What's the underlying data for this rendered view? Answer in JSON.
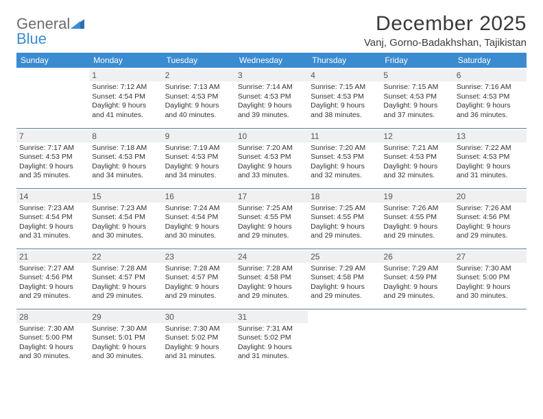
{
  "logo": {
    "general": "General",
    "blue": "Blue"
  },
  "header": {
    "month_title": "December 2025",
    "location": "Vanj, Gorno-Badakhshan, Tajikistan"
  },
  "colors": {
    "header_bg": "#3b8bd0",
    "header_text": "#ffffff",
    "daynum_bg": "#eef0f2",
    "row_border": "#5a7a99",
    "logo_gray": "#6b6b6b",
    "logo_blue": "#3b8bd0"
  },
  "day_names": [
    "Sunday",
    "Monday",
    "Tuesday",
    "Wednesday",
    "Thursday",
    "Friday",
    "Saturday"
  ],
  "weeks": [
    [
      null,
      {
        "n": "1",
        "sr": "Sunrise: 7:12 AM",
        "ss": "Sunset: 4:54 PM",
        "dl1": "Daylight: 9 hours",
        "dl2": "and 41 minutes."
      },
      {
        "n": "2",
        "sr": "Sunrise: 7:13 AM",
        "ss": "Sunset: 4:53 PM",
        "dl1": "Daylight: 9 hours",
        "dl2": "and 40 minutes."
      },
      {
        "n": "3",
        "sr": "Sunrise: 7:14 AM",
        "ss": "Sunset: 4:53 PM",
        "dl1": "Daylight: 9 hours",
        "dl2": "and 39 minutes."
      },
      {
        "n": "4",
        "sr": "Sunrise: 7:15 AM",
        "ss": "Sunset: 4:53 PM",
        "dl1": "Daylight: 9 hours",
        "dl2": "and 38 minutes."
      },
      {
        "n": "5",
        "sr": "Sunrise: 7:15 AM",
        "ss": "Sunset: 4:53 PM",
        "dl1": "Daylight: 9 hours",
        "dl2": "and 37 minutes."
      },
      {
        "n": "6",
        "sr": "Sunrise: 7:16 AM",
        "ss": "Sunset: 4:53 PM",
        "dl1": "Daylight: 9 hours",
        "dl2": "and 36 minutes."
      }
    ],
    [
      {
        "n": "7",
        "sr": "Sunrise: 7:17 AM",
        "ss": "Sunset: 4:53 PM",
        "dl1": "Daylight: 9 hours",
        "dl2": "and 35 minutes."
      },
      {
        "n": "8",
        "sr": "Sunrise: 7:18 AM",
        "ss": "Sunset: 4:53 PM",
        "dl1": "Daylight: 9 hours",
        "dl2": "and 34 minutes."
      },
      {
        "n": "9",
        "sr": "Sunrise: 7:19 AM",
        "ss": "Sunset: 4:53 PM",
        "dl1": "Daylight: 9 hours",
        "dl2": "and 34 minutes."
      },
      {
        "n": "10",
        "sr": "Sunrise: 7:20 AM",
        "ss": "Sunset: 4:53 PM",
        "dl1": "Daylight: 9 hours",
        "dl2": "and 33 minutes."
      },
      {
        "n": "11",
        "sr": "Sunrise: 7:20 AM",
        "ss": "Sunset: 4:53 PM",
        "dl1": "Daylight: 9 hours",
        "dl2": "and 32 minutes."
      },
      {
        "n": "12",
        "sr": "Sunrise: 7:21 AM",
        "ss": "Sunset: 4:53 PM",
        "dl1": "Daylight: 9 hours",
        "dl2": "and 32 minutes."
      },
      {
        "n": "13",
        "sr": "Sunrise: 7:22 AM",
        "ss": "Sunset: 4:53 PM",
        "dl1": "Daylight: 9 hours",
        "dl2": "and 31 minutes."
      }
    ],
    [
      {
        "n": "14",
        "sr": "Sunrise: 7:23 AM",
        "ss": "Sunset: 4:54 PM",
        "dl1": "Daylight: 9 hours",
        "dl2": "and 31 minutes."
      },
      {
        "n": "15",
        "sr": "Sunrise: 7:23 AM",
        "ss": "Sunset: 4:54 PM",
        "dl1": "Daylight: 9 hours",
        "dl2": "and 30 minutes."
      },
      {
        "n": "16",
        "sr": "Sunrise: 7:24 AM",
        "ss": "Sunset: 4:54 PM",
        "dl1": "Daylight: 9 hours",
        "dl2": "and 30 minutes."
      },
      {
        "n": "17",
        "sr": "Sunrise: 7:25 AM",
        "ss": "Sunset: 4:55 PM",
        "dl1": "Daylight: 9 hours",
        "dl2": "and 29 minutes."
      },
      {
        "n": "18",
        "sr": "Sunrise: 7:25 AM",
        "ss": "Sunset: 4:55 PM",
        "dl1": "Daylight: 9 hours",
        "dl2": "and 29 minutes."
      },
      {
        "n": "19",
        "sr": "Sunrise: 7:26 AM",
        "ss": "Sunset: 4:55 PM",
        "dl1": "Daylight: 9 hours",
        "dl2": "and 29 minutes."
      },
      {
        "n": "20",
        "sr": "Sunrise: 7:26 AM",
        "ss": "Sunset: 4:56 PM",
        "dl1": "Daylight: 9 hours",
        "dl2": "and 29 minutes."
      }
    ],
    [
      {
        "n": "21",
        "sr": "Sunrise: 7:27 AM",
        "ss": "Sunset: 4:56 PM",
        "dl1": "Daylight: 9 hours",
        "dl2": "and 29 minutes."
      },
      {
        "n": "22",
        "sr": "Sunrise: 7:28 AM",
        "ss": "Sunset: 4:57 PM",
        "dl1": "Daylight: 9 hours",
        "dl2": "and 29 minutes."
      },
      {
        "n": "23",
        "sr": "Sunrise: 7:28 AM",
        "ss": "Sunset: 4:57 PM",
        "dl1": "Daylight: 9 hours",
        "dl2": "and 29 minutes."
      },
      {
        "n": "24",
        "sr": "Sunrise: 7:28 AM",
        "ss": "Sunset: 4:58 PM",
        "dl1": "Daylight: 9 hours",
        "dl2": "and 29 minutes."
      },
      {
        "n": "25",
        "sr": "Sunrise: 7:29 AM",
        "ss": "Sunset: 4:58 PM",
        "dl1": "Daylight: 9 hours",
        "dl2": "and 29 minutes."
      },
      {
        "n": "26",
        "sr": "Sunrise: 7:29 AM",
        "ss": "Sunset: 4:59 PM",
        "dl1": "Daylight: 9 hours",
        "dl2": "and 29 minutes."
      },
      {
        "n": "27",
        "sr": "Sunrise: 7:30 AM",
        "ss": "Sunset: 5:00 PM",
        "dl1": "Daylight: 9 hours",
        "dl2": "and 30 minutes."
      }
    ],
    [
      {
        "n": "28",
        "sr": "Sunrise: 7:30 AM",
        "ss": "Sunset: 5:00 PM",
        "dl1": "Daylight: 9 hours",
        "dl2": "and 30 minutes."
      },
      {
        "n": "29",
        "sr": "Sunrise: 7:30 AM",
        "ss": "Sunset: 5:01 PM",
        "dl1": "Daylight: 9 hours",
        "dl2": "and 30 minutes."
      },
      {
        "n": "30",
        "sr": "Sunrise: 7:30 AM",
        "ss": "Sunset: 5:02 PM",
        "dl1": "Daylight: 9 hours",
        "dl2": "and 31 minutes."
      },
      {
        "n": "31",
        "sr": "Sunrise: 7:31 AM",
        "ss": "Sunset: 5:02 PM",
        "dl1": "Daylight: 9 hours",
        "dl2": "and 31 minutes."
      },
      null,
      null,
      null
    ]
  ]
}
